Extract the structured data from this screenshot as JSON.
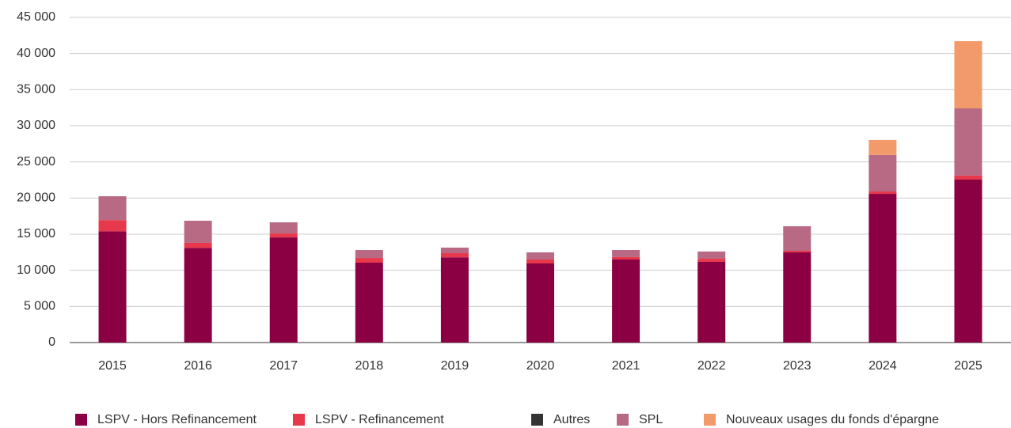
{
  "chart_data": {
    "type": "stacked_bar",
    "categories": [
      "2015",
      "2016",
      "2017",
      "2018",
      "2019",
      "2020",
      "2021",
      "2022",
      "2023",
      "2024",
      "2025"
    ],
    "series": [
      {
        "name": "LSPV - Hors Refinancement",
        "color": "#8b0043",
        "values": [
          15400,
          13100,
          14550,
          11060,
          11800,
          10950,
          11500,
          11170,
          12480,
          20580,
          22560
        ]
      },
      {
        "name": "LSPV - Refinancement",
        "color": "#e8384b",
        "values": [
          1550,
          700,
          550,
          650,
          570,
          550,
          330,
          430,
          220,
          330,
          550
        ]
      },
      {
        "name": "Autres",
        "color": "#333333",
        "values": [
          0,
          0,
          0,
          0,
          0,
          0,
          0,
          0,
          0,
          0,
          0
        ]
      },
      {
        "name": "SPL",
        "color": "#b86a84",
        "values": [
          3300,
          3060,
          1540,
          1100,
          770,
          980,
          980,
          1000,
          3400,
          5050,
          9300
        ]
      },
      {
        "name": "Nouveaux usages du fonds d'épargne",
        "color": "#f39a6b",
        "values": [
          0,
          0,
          0,
          0,
          0,
          0,
          0,
          0,
          0,
          2080,
          9300
        ]
      }
    ],
    "ylim": [
      0,
      45000
    ],
    "yticks": [
      0,
      {
        "value": 5000,
        "label": "5 000"
      },
      {
        "value": 10000,
        "label": "10 000"
      },
      {
        "value": 15000,
        "label": "15 000"
      },
      {
        "value": 20000,
        "label": "20 000"
      },
      {
        "value": 25000,
        "label": "25 000"
      },
      {
        "value": 30000,
        "label": "30 000"
      },
      {
        "value": 35000,
        "label": "35 000"
      },
      {
        "value": 40000,
        "label": "40 000"
      },
      {
        "value": 45000,
        "label": "45 000"
      }
    ],
    "grid": true,
    "legend": "bottom"
  }
}
